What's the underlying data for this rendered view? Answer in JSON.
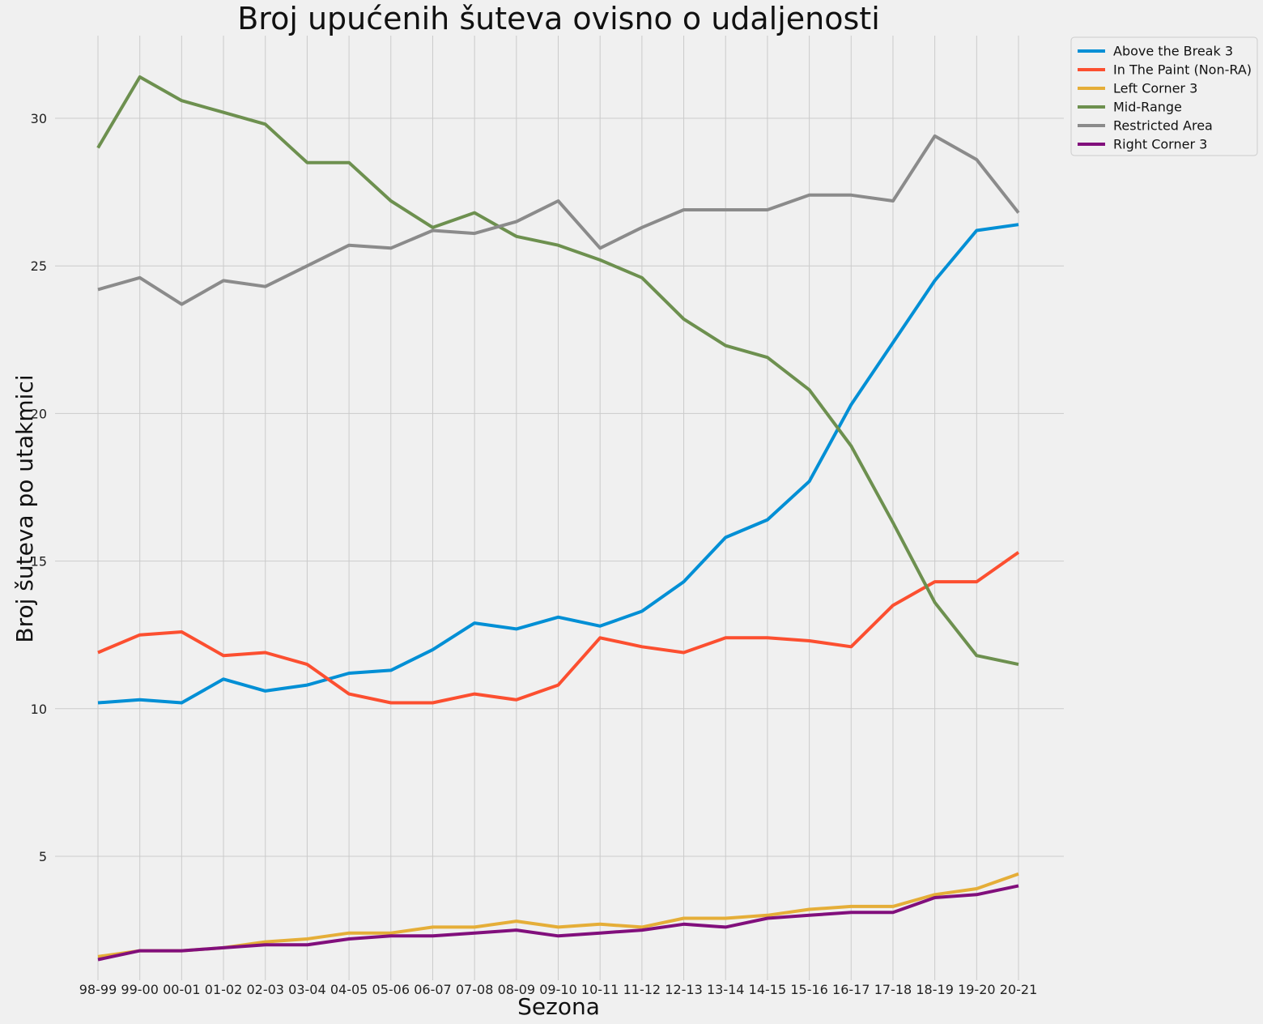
{
  "chart_data": {
    "type": "line",
    "title": "Broj upućenih šuteva ovisno o udaljenosti",
    "xlabel": "Sezona",
    "ylabel": "Broj šuteva po utakmici",
    "categories": [
      "98-99",
      "99-00",
      "00-01",
      "01-02",
      "02-03",
      "03-04",
      "04-05",
      "05-06",
      "06-07",
      "07-08",
      "08-09",
      "09-10",
      "10-11",
      "11-12",
      "12-13",
      "13-14",
      "14-15",
      "15-16",
      "16-17",
      "17-18",
      "18-19",
      "19-20",
      "20-21"
    ],
    "ylim": [
      0.8,
      32.8
    ],
    "yticks": [
      5,
      10,
      15,
      20,
      25,
      30
    ],
    "grid": true,
    "legend_position": "outside-top-right",
    "series": [
      {
        "name": "Above the Break 3",
        "color": "#008fd5",
        "values": [
          10.2,
          10.3,
          10.2,
          11.0,
          10.6,
          10.8,
          11.2,
          11.3,
          12.0,
          12.9,
          12.7,
          13.1,
          12.8,
          13.3,
          14.3,
          15.8,
          16.4,
          17.7,
          20.3,
          22.4,
          24.5,
          26.2,
          26.4
        ]
      },
      {
        "name": "In The Paint (Non-RA)",
        "color": "#fc4f30",
        "values": [
          11.9,
          12.5,
          12.6,
          11.8,
          11.9,
          11.5,
          10.5,
          10.2,
          10.2,
          10.5,
          10.3,
          10.8,
          12.4,
          12.1,
          11.9,
          12.4,
          12.4,
          12.3,
          12.1,
          13.5,
          14.3,
          14.3,
          15.3
        ]
      },
      {
        "name": "Left Corner 3",
        "color": "#e5ae38",
        "values": [
          1.6,
          1.8,
          1.8,
          1.9,
          2.1,
          2.2,
          2.4,
          2.4,
          2.6,
          2.6,
          2.8,
          2.6,
          2.7,
          2.6,
          2.9,
          2.9,
          3.0,
          3.2,
          3.3,
          3.3,
          3.7,
          3.9,
          4.4
        ]
      },
      {
        "name": "Mid-Range",
        "color": "#6d904f",
        "values": [
          29.0,
          31.4,
          30.6,
          30.2,
          29.8,
          28.5,
          28.5,
          27.2,
          26.3,
          26.8,
          26.0,
          25.7,
          25.2,
          24.6,
          23.2,
          22.3,
          21.9,
          20.8,
          18.9,
          16.3,
          13.6,
          11.8,
          11.5
        ]
      },
      {
        "name": "Restricted Area",
        "color": "#8b8b8b",
        "values": [
          24.2,
          24.6,
          23.7,
          24.5,
          24.3,
          25.0,
          25.7,
          25.6,
          26.2,
          26.1,
          26.5,
          27.2,
          25.6,
          26.3,
          26.9,
          26.9,
          26.9,
          27.4,
          27.4,
          27.2,
          29.4,
          28.6,
          26.8
        ]
      },
      {
        "name": "Right Corner 3",
        "color": "#810f7c",
        "values": [
          1.5,
          1.8,
          1.8,
          1.9,
          2.0,
          2.0,
          2.2,
          2.3,
          2.3,
          2.4,
          2.5,
          2.3,
          2.4,
          2.5,
          2.7,
          2.6,
          2.9,
          3.0,
          3.1,
          3.1,
          3.6,
          3.7,
          4.0
        ]
      }
    ]
  }
}
